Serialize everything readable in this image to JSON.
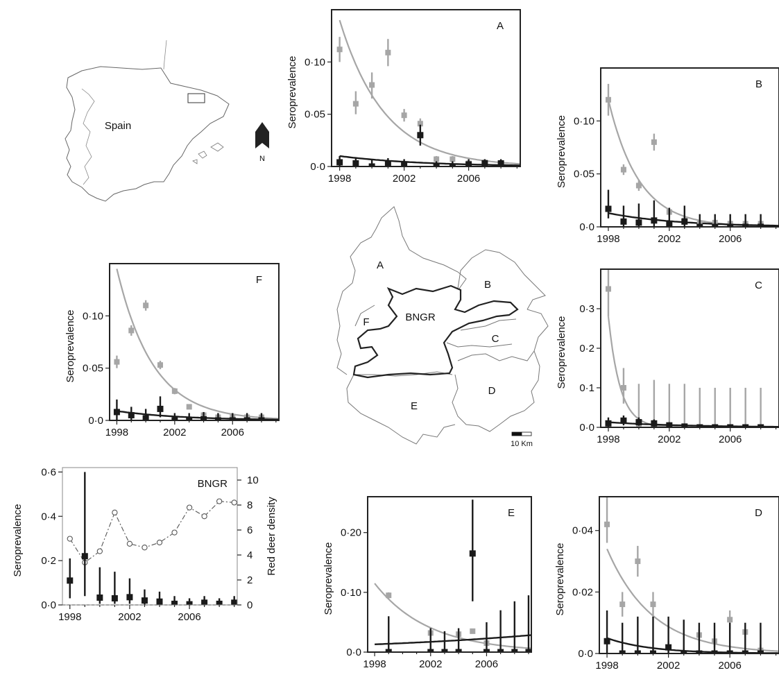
{
  "figure": {
    "map_labels": {
      "country": "Spain",
      "north": "N",
      "scale": "10 Km",
      "regions": [
        "A",
        "B",
        "C",
        "D",
        "E",
        "F",
        "BNGR"
      ]
    }
  },
  "colors": {
    "seropositive_other": "#a6a6a6",
    "seropositive_deer": "#1a1a1a",
    "density": "#555555"
  },
  "chart_data": [
    {
      "id": "A",
      "type": "scatter",
      "label": "A",
      "ylabel": "Seroprevalence",
      "ylim": [
        0,
        0.15
      ],
      "yticks": [
        0,
        0.05,
        0.1
      ],
      "yticklabels": [
        "0·0",
        "0·05",
        "0·10"
      ],
      "xlim": [
        1997.5,
        2009.2
      ],
      "xticks": [
        1998,
        2002,
        2006
      ],
      "xticklabels": [
        "1998",
        "2002",
        "2006"
      ],
      "series": [
        {
          "color": "grey",
          "x": [
            1998,
            1999,
            2000,
            2001,
            2002,
            2003,
            2004,
            2005,
            2006,
            2007,
            2008
          ],
          "y": [
            0.112,
            0.06,
            0.078,
            0.109,
            0.049,
            0.041,
            0.007,
            0.007,
            0.003,
            0.004,
            0.003
          ],
          "lo": [
            0.1,
            0.05,
            0.065,
            0.096,
            0.043,
            0.037,
            0.004,
            0.004,
            0.001,
            0.002,
            0.001
          ],
          "hi": [
            0.124,
            0.072,
            0.09,
            0.122,
            0.055,
            0.046,
            0.01,
            0.01,
            0.005,
            0.006,
            0.005
          ],
          "curve": {
            "a": 0.14,
            "k": 0.36
          }
        },
        {
          "color": "black",
          "x": [
            1998,
            1999,
            2000,
            2001,
            2002,
            2003,
            2004,
            2005,
            2006,
            2007,
            2008
          ],
          "y": [
            0.004,
            0.003,
            0.0,
            0.003,
            0.002,
            0.03,
            0.0,
            0.0,
            0.002,
            0.003,
            0.003
          ],
          "lo": [
            0.0,
            0.0,
            0.0,
            0.0,
            0.0,
            0.02,
            0.0,
            0.0,
            0.0,
            0.0,
            0.0
          ],
          "hi": [
            0.01,
            0.008,
            0.006,
            0.008,
            0.007,
            0.04,
            0.005,
            0.005,
            0.007,
            0.007,
            0.007
          ],
          "curve": {
            "a": 0.01,
            "k": 0.2
          }
        }
      ]
    },
    {
      "id": "B",
      "type": "scatter",
      "label": "B",
      "ylabel": "Seroprevalence",
      "ylim": [
        0,
        0.15
      ],
      "yticks": [
        0,
        0.05,
        0.1
      ],
      "yticklabels": [
        "0·0",
        "0·05",
        "0·10"
      ],
      "xlim": [
        1997.5,
        2009.2
      ],
      "xticks": [
        1998,
        2002,
        2006
      ],
      "xticklabels": [
        "1998",
        "2002",
        "2006"
      ],
      "series": [
        {
          "color": "grey",
          "x": [
            1998,
            1999,
            2000,
            2001,
            2002,
            2003,
            2004,
            2005,
            2006,
            2007,
            2008
          ],
          "y": [
            0.12,
            0.054,
            0.039,
            0.08,
            0.014,
            0.006,
            0.003,
            0.004,
            0.003,
            0.003,
            0.003
          ],
          "lo": [
            0.105,
            0.049,
            0.034,
            0.072,
            0.01,
            0.003,
            0.001,
            0.001,
            0.001,
            0.001,
            0.001
          ],
          "hi": [
            0.135,
            0.059,
            0.044,
            0.088,
            0.018,
            0.009,
            0.005,
            0.007,
            0.005,
            0.005,
            0.005
          ],
          "curve": {
            "a": 0.12,
            "k": 0.5
          }
        },
        {
          "color": "black",
          "x": [
            1998,
            1999,
            2000,
            2001,
            2002,
            2003,
            2004,
            2005,
            2006,
            2007,
            2008
          ],
          "y": [
            0.017,
            0.005,
            0.004,
            0.006,
            0.003,
            0.005,
            0.0,
            0.0,
            0.0,
            0.0,
            0.0
          ],
          "lo": [
            0.008,
            0.0,
            0.0,
            0.0,
            0.0,
            0.0,
            0.0,
            0.0,
            0.0,
            0.0,
            0.0
          ],
          "hi": [
            0.035,
            0.02,
            0.022,
            0.025,
            0.018,
            0.02,
            0.012,
            0.012,
            0.012,
            0.012,
            0.012
          ],
          "curve": {
            "a": 0.013,
            "k": 0.22
          }
        }
      ]
    },
    {
      "id": "F",
      "type": "scatter",
      "label": "F",
      "ylabel": "Seroprevalence",
      "ylim": [
        0,
        0.15
      ],
      "yticks": [
        0,
        0.05,
        0.1
      ],
      "yticklabels": [
        "0·0",
        "0·05",
        "0·10"
      ],
      "xlim": [
        1997.5,
        2009.2
      ],
      "xticks": [
        1998,
        2002,
        2006
      ],
      "xticklabels": [
        "1998",
        "2002",
        "2006"
      ],
      "series": [
        {
          "color": "grey",
          "x": [
            1998,
            1999,
            2000,
            2001,
            2002,
            2003,
            2004,
            2005,
            2006,
            2007,
            2008
          ],
          "y": [
            0.056,
            0.086,
            0.11,
            0.053,
            0.028,
            0.013,
            0.005,
            0.003,
            0.003,
            0.003,
            0.003
          ],
          "lo": [
            0.05,
            0.081,
            0.105,
            0.049,
            0.025,
            0.011,
            0.003,
            0.001,
            0.001,
            0.001,
            0.001
          ],
          "hi": [
            0.062,
            0.091,
            0.115,
            0.057,
            0.031,
            0.015,
            0.007,
            0.005,
            0.005,
            0.005,
            0.005
          ],
          "curve": {
            "a": 0.145,
            "k": 0.4
          }
        },
        {
          "color": "black",
          "x": [
            1998,
            1999,
            2000,
            2001,
            2002,
            2003,
            2004,
            2005,
            2006,
            2007,
            2008
          ],
          "y": [
            0.008,
            0.005,
            0.002,
            0.011,
            0.0,
            0.0,
            0.001,
            0.0,
            0.0,
            0.0,
            0.0
          ],
          "lo": [
            0.0,
            0.0,
            0.0,
            0.003,
            0.0,
            0.0,
            0.0,
            0.0,
            0.0,
            0.0,
            0.0
          ],
          "hi": [
            0.02,
            0.013,
            0.011,
            0.023,
            0.007,
            0.007,
            0.008,
            0.007,
            0.007,
            0.007,
            0.007
          ],
          "curve": {
            "a": 0.009,
            "k": 0.22
          }
        }
      ]
    },
    {
      "id": "C",
      "type": "scatter",
      "label": "C",
      "ylabel": "Seroprevalence",
      "ylim": [
        0,
        0.4
      ],
      "yticks": [
        0,
        0.1,
        0.2,
        0.3
      ],
      "yticklabels": [
        "0·0",
        "0·1",
        "0·2",
        "0·3"
      ],
      "xlim": [
        1997.5,
        2009.2
      ],
      "xticks": [
        1998,
        2002,
        2006
      ],
      "xticklabels": [
        "1998",
        "2002",
        "2006"
      ],
      "series": [
        {
          "color": "grey",
          "x": [
            1998,
            1999,
            2000,
            2001,
            2002,
            2003,
            2004,
            2005,
            2006,
            2007,
            2008
          ],
          "y": [
            0.35,
            0.1,
            0.0,
            0.0,
            0.0,
            0.0,
            0.0,
            0.0,
            0.0,
            0.0,
            0.0
          ],
          "lo": [
            0.28,
            0.06,
            0.0,
            0.0,
            0.0,
            0.0,
            0.0,
            0.0,
            0.0,
            0.0,
            0.0
          ],
          "hi": [
            0.4,
            0.15,
            0.11,
            0.12,
            0.11,
            0.11,
            0.1,
            0.1,
            0.1,
            0.1,
            0.1
          ],
          "curve": {
            "a": 0.28,
            "k": 1.3
          }
        },
        {
          "color": "black",
          "x": [
            1998,
            1999,
            2000,
            2001,
            2002,
            2003,
            2004,
            2005,
            2006,
            2007,
            2008
          ],
          "y": [
            0.01,
            0.017,
            0.013,
            0.01,
            0.005,
            0.002,
            0.0,
            0.0,
            0.0,
            0.0,
            0.0
          ],
          "lo": [
            0.0,
            0.005,
            0.004,
            0.002,
            0.0,
            0.0,
            0.0,
            0.0,
            0.0,
            0.0,
            0.0
          ],
          "hi": [
            0.025,
            0.03,
            0.025,
            0.02,
            0.013,
            0.009,
            0.006,
            0.006,
            0.006,
            0.006,
            0.006
          ],
          "curve": {
            "a": 0.013,
            "k": 0.2
          }
        }
      ]
    },
    {
      "id": "BNGR",
      "type": "scatter",
      "label": "BNGR",
      "ylabel": "Seroprevalence",
      "ylabel_right": "Red deer density",
      "ylim": [
        0,
        0.62
      ],
      "yticks": [
        0,
        0.2,
        0.4,
        0.6
      ],
      "yticklabels": [
        "0·0",
        "0·2",
        "0·4",
        "0·6"
      ],
      "ylim_right": [
        0,
        11
      ],
      "yticks_right": [
        0,
        2,
        4,
        6,
        8,
        10
      ],
      "yticklabels_right": [
        "0",
        "2",
        "4",
        "6",
        "8",
        "10"
      ],
      "xlim": [
        1997.5,
        2009.2
      ],
      "xticks": [
        1998,
        2002,
        2006
      ],
      "xticklabels": [
        "1998",
        "2002",
        "2006"
      ],
      "series": [
        {
          "color": "black",
          "x": [
            1998,
            1999,
            2000,
            2001,
            2002,
            2003,
            2004,
            2005,
            2006,
            2007,
            2008,
            2009
          ],
          "y": [
            0.11,
            0.22,
            0.033,
            0.03,
            0.035,
            0.02,
            0.015,
            0.005,
            0.003,
            0.01,
            0.005,
            0.01
          ],
          "lo": [
            0.03,
            0.04,
            0.005,
            0.005,
            0.005,
            0.0,
            0.0,
            0.0,
            0.0,
            0.0,
            0.0,
            0.0
          ],
          "hi": [
            0.21,
            0.6,
            0.17,
            0.15,
            0.12,
            0.07,
            0.06,
            0.04,
            0.03,
            0.04,
            0.03,
            0.04
          ]
        },
        {
          "color": "density",
          "x": [
            1998,
            1999,
            2000,
            2001,
            2002,
            2003,
            2004,
            2005,
            2006,
            2007,
            2008,
            2009
          ],
          "y": [
            5.3,
            3.4,
            4.3,
            7.4,
            4.9,
            4.6,
            5.0,
            5.8,
            7.8,
            7.1,
            8.3,
            8.2
          ]
        }
      ]
    },
    {
      "id": "E",
      "type": "scatter",
      "label": "E",
      "ylabel": "Seroprevalence",
      "ylim": [
        0,
        0.26
      ],
      "yticks": [
        0,
        0.1,
        0.2
      ],
      "yticklabels": [
        "0·0",
        "0·10",
        "0·20"
      ],
      "xlim": [
        1997.5,
        2009.2
      ],
      "xticks": [
        1998,
        2002,
        2006
      ],
      "xticklabels": [
        "1998",
        "2002",
        "2006"
      ],
      "series": [
        {
          "color": "grey",
          "x": [
            1999,
            2002,
            2004,
            2005,
            2006
          ],
          "y": [
            0.095,
            0.032,
            0.03,
            0.035,
            0.015
          ],
          "lo": [
            0.09,
            0.028,
            0.026,
            0.031,
            0.011
          ],
          "hi": [
            0.1,
            0.036,
            0.034,
            0.039,
            0.019
          ],
          "curve": {
            "a": 0.115,
            "k": 0.26
          }
        },
        {
          "color": "black",
          "x": [
            1999,
            2002,
            2003,
            2004,
            2005,
            2006,
            2007,
            2008,
            2009
          ],
          "y": [
            0.0,
            0.0,
            0.0,
            0.0,
            0.165,
            0.0,
            0.0,
            0.0,
            0.0
          ],
          "lo": [
            0.0,
            0.0,
            0.0,
            0.0,
            0.085,
            0.0,
            0.0,
            0.0,
            0.0
          ],
          "hi": [
            0.06,
            0.04,
            0.035,
            0.04,
            0.255,
            0.05,
            0.07,
            0.085,
            0.095
          ],
          "curve": {
            "a": 0.013,
            "k": -0.07
          }
        }
      ]
    },
    {
      "id": "D",
      "type": "scatter",
      "label": "D",
      "ylabel": "Seroprevalence",
      "ylim": [
        0,
        0.051
      ],
      "yticks": [
        0,
        0.02,
        0.04
      ],
      "yticklabels": [
        "0·0",
        "0·02",
        "0·04"
      ],
      "xlim": [
        1997.5,
        2009.2
      ],
      "xticks": [
        1998,
        2002,
        2006
      ],
      "xticklabels": [
        "1998",
        "2002",
        "2006"
      ],
      "series": [
        {
          "color": "grey",
          "x": [
            1998,
            1999,
            2000,
            2001,
            2002,
            2003,
            2004,
            2005,
            2006,
            2007,
            2008
          ],
          "y": [
            0.042,
            0.016,
            0.03,
            0.016,
            0.002,
            0.0,
            0.006,
            0.004,
            0.011,
            0.007,
            0.001
          ],
          "lo": [
            0.036,
            0.012,
            0.025,
            0.012,
            0.0,
            0.0,
            0.004,
            0.002,
            0.008,
            0.005,
            0.0
          ],
          "hi": [
            0.051,
            0.02,
            0.035,
            0.02,
            0.004,
            0.002,
            0.008,
            0.006,
            0.014,
            0.009,
            0.003
          ],
          "curve": {
            "a": 0.034,
            "k": 0.34
          }
        },
        {
          "color": "black",
          "x": [
            1998,
            1999,
            2000,
            2001,
            2002,
            2003,
            2004,
            2005,
            2006,
            2007,
            2008
          ],
          "y": [
            0.004,
            0.0,
            0.0,
            0.0,
            0.002,
            0.0,
            0.0,
            0.0,
            0.0,
            0.0,
            0.0
          ],
          "lo": [
            0.0,
            0.0,
            0.0,
            0.0,
            0.0,
            0.0,
            0.0,
            0.0,
            0.0,
            0.0,
            0.0
          ],
          "hi": [
            0.014,
            0.01,
            0.012,
            0.012,
            0.012,
            0.011,
            0.01,
            0.01,
            0.01,
            0.01,
            0.01
          ],
          "curve": {
            "a": 0.005,
            "k": 0.35
          }
        }
      ]
    }
  ]
}
